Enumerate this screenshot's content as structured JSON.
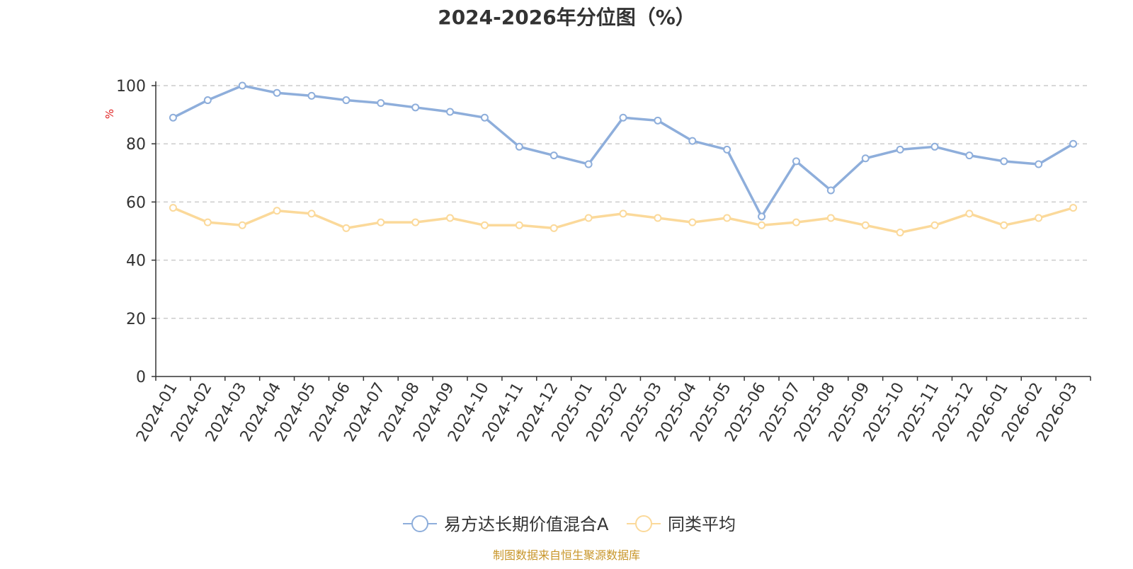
{
  "chart_data": {
    "type": "line",
    "title": "2024-2026年分位图（%）",
    "ylabel": "%",
    "xlabel": "",
    "ylim": [
      0,
      100
    ],
    "yticks": [
      0,
      20,
      40,
      60,
      80,
      100
    ],
    "grid": true,
    "legend_position": "bottom",
    "categories": [
      "2024-01",
      "2024-02",
      "2024-03",
      "2024-04",
      "2024-05",
      "2024-06",
      "2024-07",
      "2024-08",
      "2024-09",
      "2024-10",
      "2024-11",
      "2024-12",
      "2025-01",
      "2025-02",
      "2025-03",
      "2025-04",
      "2025-05",
      "2025-06",
      "2025-07",
      "2025-08",
      "2025-09",
      "2025-10",
      "2025-11",
      "2025-12",
      "2026-01",
      "2026-02",
      "2026-03"
    ],
    "series": [
      {
        "name": "易方达长期价值混合A",
        "color": "#8eaedb",
        "values": [
          89,
          95,
          100,
          97.5,
          96.5,
          95,
          94,
          92.5,
          91,
          89,
          79,
          76,
          73,
          89,
          88,
          81,
          78,
          55,
          74,
          64,
          75,
          78,
          79,
          76,
          74,
          73,
          80
        ]
      },
      {
        "name": "同类平均",
        "color": "#fbd99a",
        "values": [
          58,
          53,
          52,
          57,
          56,
          51,
          53,
          53,
          54.5,
          52,
          52,
          51,
          54.5,
          56,
          54.5,
          53,
          54.5,
          52,
          53,
          54.5,
          52,
          49.5,
          52,
          56,
          52,
          54.5,
          58
        ]
      }
    ]
  },
  "footer": {
    "source_text": "制图数据来自恒生聚源数据库",
    "source_color": "#c8962a"
  },
  "colors": {
    "axis": "#333333",
    "grid": "#cccccc",
    "ylabel": "#e02020",
    "title": "#333333"
  }
}
